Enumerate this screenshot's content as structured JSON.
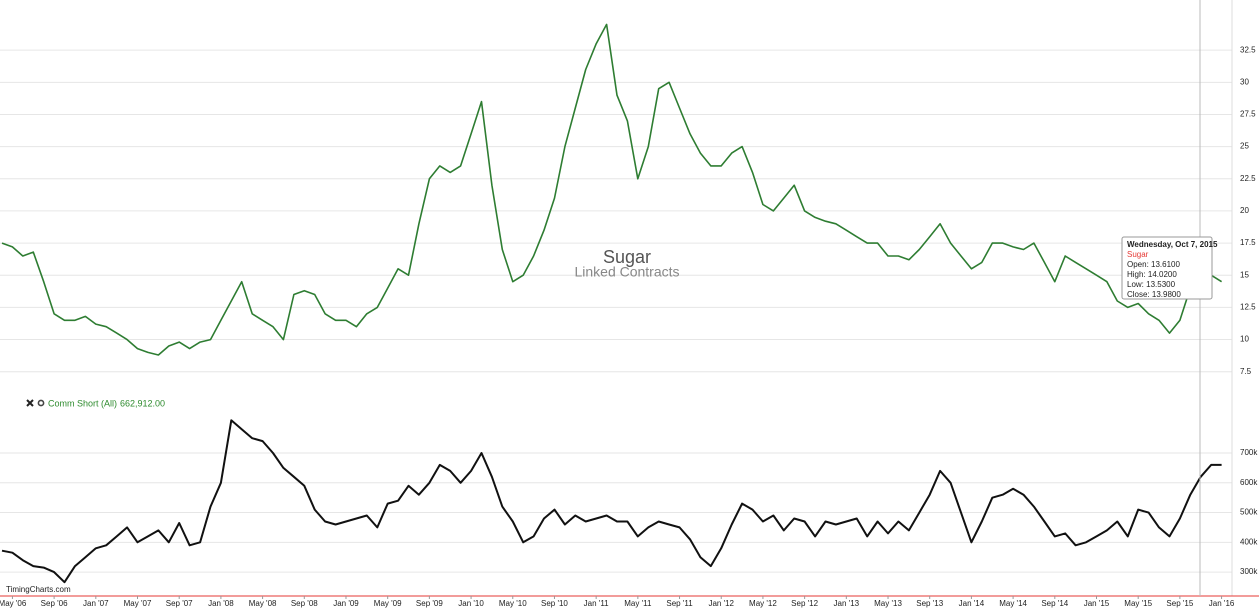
{
  "chart_data": [
    {
      "type": "line",
      "title": "Sugar",
      "subtitle": "Linked Contracts",
      "x": [
        "2006-04",
        "2006-05",
        "2006-06",
        "2006-07",
        "2006-08",
        "2006-09",
        "2006-10",
        "2006-11",
        "2006-12",
        "2007-01",
        "2007-02",
        "2007-03",
        "2007-04",
        "2007-05",
        "2007-06",
        "2007-07",
        "2007-08",
        "2007-09",
        "2007-10",
        "2007-11",
        "2007-12",
        "2008-01",
        "2008-02",
        "2008-03",
        "2008-04",
        "2008-05",
        "2008-06",
        "2008-07",
        "2008-08",
        "2008-09",
        "2008-10",
        "2008-11",
        "2008-12",
        "2009-01",
        "2009-02",
        "2009-03",
        "2009-04",
        "2009-05",
        "2009-06",
        "2009-07",
        "2009-08",
        "2009-09",
        "2009-10",
        "2009-11",
        "2009-12",
        "2010-01",
        "2010-02",
        "2010-03",
        "2010-04",
        "2010-05",
        "2010-06",
        "2010-07",
        "2010-08",
        "2010-09",
        "2010-10",
        "2010-11",
        "2010-12",
        "2011-01",
        "2011-02",
        "2011-03",
        "2011-04",
        "2011-05",
        "2011-06",
        "2011-07",
        "2011-08",
        "2011-09",
        "2011-10",
        "2011-11",
        "2011-12",
        "2012-01",
        "2012-02",
        "2012-03",
        "2012-04",
        "2012-05",
        "2012-06",
        "2012-07",
        "2012-08",
        "2012-09",
        "2012-10",
        "2012-11",
        "2012-12",
        "2013-01",
        "2013-02",
        "2013-03",
        "2013-04",
        "2013-05",
        "2013-06",
        "2013-07",
        "2013-08",
        "2013-09",
        "2013-10",
        "2013-11",
        "2013-12",
        "2014-01",
        "2014-02",
        "2014-03",
        "2014-04",
        "2014-05",
        "2014-06",
        "2014-07",
        "2014-08",
        "2014-09",
        "2014-10",
        "2014-11",
        "2014-12",
        "2015-01",
        "2015-02",
        "2015-03",
        "2015-04",
        "2015-05",
        "2015-06",
        "2015-07",
        "2015-08",
        "2015-09",
        "2015-10",
        "2015-11",
        "2015-12",
        "2016-01"
      ],
      "series": [
        {
          "name": "Sugar",
          "color": "#2e7d32",
          "values": [
            17.5,
            17.2,
            16.5,
            16.8,
            14.5,
            12.0,
            11.5,
            11.5,
            11.8,
            11.2,
            11.0,
            10.5,
            10.0,
            9.3,
            9.0,
            8.8,
            9.5,
            9.8,
            9.3,
            9.8,
            10.0,
            11.5,
            13.0,
            14.5,
            12.0,
            11.5,
            11.0,
            10.0,
            13.5,
            13.8,
            13.5,
            12.0,
            11.5,
            11.5,
            11.0,
            12.0,
            12.5,
            14.0,
            15.5,
            15.0,
            19.0,
            22.5,
            23.5,
            23.0,
            23.5,
            26.0,
            28.5,
            22.0,
            17.0,
            14.5,
            15.0,
            16.5,
            18.5,
            21.0,
            25.0,
            28.0,
            31.0,
            33.0,
            34.5,
            29.0,
            27.0,
            22.5,
            25.0,
            29.5,
            30.0,
            28.0,
            26.0,
            24.5,
            23.5,
            23.5,
            24.5,
            25.0,
            23.0,
            20.5,
            20.0,
            21.0,
            22.0,
            20.0,
            19.5,
            19.2,
            19.0,
            18.5,
            18.0,
            17.5,
            17.5,
            16.5,
            16.5,
            16.2,
            17.0,
            18.0,
            19.0,
            17.5,
            16.5,
            15.5,
            16.0,
            17.5,
            17.5,
            17.2,
            17.0,
            17.5,
            16.0,
            14.5,
            16.5,
            16.0,
            15.5,
            15.0,
            14.5,
            13.0,
            12.5,
            12.8,
            12.0,
            11.5,
            10.5,
            11.5,
            14.0,
            14.8,
            15.0,
            14.5
          ]
        }
      ],
      "xlim": [
        "2006-04",
        "2016-02"
      ],
      "ylim": [
        6.7,
        36.4
      ],
      "yticks": [
        7.5,
        10,
        12.5,
        15,
        17.5,
        20,
        22.5,
        25,
        27.5,
        30,
        32.5
      ],
      "grid": true,
      "tooltip": {
        "date": "Wednesday, Oct 7, 2015",
        "name": "Sugar",
        "name_color": "#e53935",
        "lines": [
          "Open: 13.6100",
          "High: 14.0200",
          "Low: 13.5300",
          "Close: 13.9800"
        ]
      }
    },
    {
      "type": "line",
      "x": [
        "2006-04",
        "2006-05",
        "2006-06",
        "2006-07",
        "2006-08",
        "2006-09",
        "2006-10",
        "2006-11",
        "2006-12",
        "2007-01",
        "2007-02",
        "2007-03",
        "2007-04",
        "2007-05",
        "2007-06",
        "2007-07",
        "2007-08",
        "2007-09",
        "2007-10",
        "2007-11",
        "2007-12",
        "2008-01",
        "2008-02",
        "2008-03",
        "2008-04",
        "2008-05",
        "2008-06",
        "2008-07",
        "2008-08",
        "2008-09",
        "2008-10",
        "2008-11",
        "2008-12",
        "2009-01",
        "2009-02",
        "2009-03",
        "2009-04",
        "2009-05",
        "2009-06",
        "2009-07",
        "2009-08",
        "2009-09",
        "2009-10",
        "2009-11",
        "2009-12",
        "2010-01",
        "2010-02",
        "2010-03",
        "2010-04",
        "2010-05",
        "2010-06",
        "2010-07",
        "2010-08",
        "2010-09",
        "2010-10",
        "2010-11",
        "2010-12",
        "2011-01",
        "2011-02",
        "2011-03",
        "2011-04",
        "2011-05",
        "2011-06",
        "2011-07",
        "2011-08",
        "2011-09",
        "2011-10",
        "2011-11",
        "2011-12",
        "2012-01",
        "2012-02",
        "2012-03",
        "2012-04",
        "2012-05",
        "2012-06",
        "2012-07",
        "2012-08",
        "2012-09",
        "2012-10",
        "2012-11",
        "2012-12",
        "2013-01",
        "2013-02",
        "2013-03",
        "2013-04",
        "2013-05",
        "2013-06",
        "2013-07",
        "2013-08",
        "2013-09",
        "2013-10",
        "2013-11",
        "2013-12",
        "2014-01",
        "2014-02",
        "2014-03",
        "2014-04",
        "2014-05",
        "2014-06",
        "2014-07",
        "2014-08",
        "2014-09",
        "2014-10",
        "2014-11",
        "2014-12",
        "2015-01",
        "2015-02",
        "2015-03",
        "2015-04",
        "2015-05",
        "2015-06",
        "2015-07",
        "2015-08",
        "2015-09",
        "2015-10",
        "2015-11",
        "2015-12",
        "2016-01"
      ],
      "series": [
        {
          "name": "Comm Short (All)",
          "color": "#111111",
          "values": [
            372000,
            365000,
            340000,
            320000,
            315000,
            300000,
            266000,
            320000,
            350000,
            380000,
            390000,
            420000,
            450000,
            400000,
            420000,
            440000,
            400000,
            465000,
            390000,
            400000,
            520000,
            600000,
            810000,
            780000,
            750000,
            740000,
            700000,
            650000,
            620000,
            590000,
            510000,
            470000,
            460000,
            470000,
            480000,
            490000,
            450000,
            530000,
            540000,
            590000,
            560000,
            600000,
            660000,
            640000,
            600000,
            640000,
            700000,
            620000,
            520000,
            470000,
            400000,
            420000,
            480000,
            510000,
            460000,
            490000,
            470000,
            480000,
            490000,
            470000,
            470000,
            420000,
            450000,
            470000,
            460000,
            450000,
            410000,
            350000,
            320000,
            380000,
            460000,
            530000,
            510000,
            470000,
            490000,
            440000,
            480000,
            470000,
            420000,
            470000,
            460000,
            470000,
            480000,
            420000,
            470000,
            430000,
            470000,
            440000,
            500000,
            560000,
            640000,
            600000,
            500000,
            400000,
            470000,
            550000,
            560000,
            580000,
            560000,
            520000,
            470000,
            420000,
            430000,
            390000,
            400000,
            420000,
            440000,
            470000,
            420000,
            510000,
            500000,
            450000,
            420000,
            480000,
            560000,
            620000,
            660000,
            660000
          ]
        }
      ],
      "last_value_label": "662,912.00",
      "legend_color": "#2e8b2e",
      "xlim": [
        "2006-04",
        "2016-02"
      ],
      "ylim": [
        223000,
        811000
      ],
      "yticks": [
        {
          "value": 300000,
          "label": "300k"
        },
        {
          "value": 400000,
          "label": "400k"
        },
        {
          "value": 500000,
          "label": "500k"
        },
        {
          "value": 600000,
          "label": "600k"
        },
        {
          "value": 700000,
          "label": "700k"
        }
      ],
      "xticks": [
        {
          "value": "2006-05",
          "label": "May '06"
        },
        {
          "value": "2006-09",
          "label": "Sep '06"
        },
        {
          "value": "2007-01",
          "label": "Jan '07"
        },
        {
          "value": "2007-05",
          "label": "May '07"
        },
        {
          "value": "2007-09",
          "label": "Sep '07"
        },
        {
          "value": "2008-01",
          "label": "Jan '08"
        },
        {
          "value": "2008-05",
          "label": "May '08"
        },
        {
          "value": "2008-09",
          "label": "Sep '08"
        },
        {
          "value": "2009-01",
          "label": "Jan '09"
        },
        {
          "value": "2009-05",
          "label": "May '09"
        },
        {
          "value": "2009-09",
          "label": "Sep '09"
        },
        {
          "value": "2010-01",
          "label": "Jan '10"
        },
        {
          "value": "2010-05",
          "label": "May '10"
        },
        {
          "value": "2010-09",
          "label": "Sep '10"
        },
        {
          "value": "2011-01",
          "label": "Jan '11"
        },
        {
          "value": "2011-05",
          "label": "May '11"
        },
        {
          "value": "2011-09",
          "label": "Sep '11"
        },
        {
          "value": "2012-01",
          "label": "Jan '12"
        },
        {
          "value": "2012-05",
          "label": "May '12"
        },
        {
          "value": "2012-09",
          "label": "Sep '12"
        },
        {
          "value": "2013-01",
          "label": "Jan '13"
        },
        {
          "value": "2013-05",
          "label": "May '13"
        },
        {
          "value": "2013-09",
          "label": "Sep '13"
        },
        {
          "value": "2014-01",
          "label": "Jan '14"
        },
        {
          "value": "2014-05",
          "label": "May '14"
        },
        {
          "value": "2014-09",
          "label": "Sep '14"
        },
        {
          "value": "2015-01",
          "label": "Jan '15"
        },
        {
          "value": "2015-05",
          "label": "May '15"
        },
        {
          "value": "2015-09",
          "label": "Sep '15"
        },
        {
          "value": "2016-01",
          "label": "Jan '16"
        }
      ],
      "grid": true,
      "watermark": "TimingCharts.com"
    }
  ]
}
